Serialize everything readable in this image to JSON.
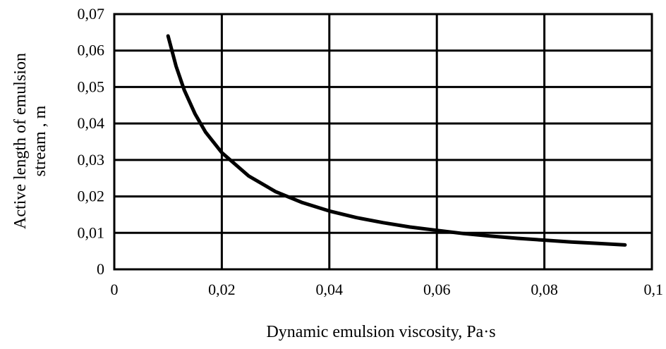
{
  "chart_data": {
    "type": "line",
    "title": "",
    "xlabel": "Dynamic emulsion viscosity, Pa·s",
    "ylabel_lines": [
      "Active length of emulsion",
      "stream , m"
    ],
    "xlim": [
      0,
      0.1
    ],
    "ylim": [
      0,
      0.07
    ],
    "x_ticks": [
      0,
      0.02,
      0.04,
      0.06,
      0.08,
      0.1
    ],
    "y_ticks": [
      0,
      0.01,
      0.02,
      0.03,
      0.04,
      0.05,
      0.06,
      0.07
    ],
    "x_tick_labels": [
      "0",
      "0,02",
      "0,04",
      "0,06",
      "0,08",
      "0,1"
    ],
    "y_tick_labels": [
      "0",
      "0,01",
      "0,02",
      "0,03",
      "0,04",
      "0,05",
      "0,06",
      "0,07"
    ],
    "grid": true,
    "legend": "none",
    "series": [
      {
        "x": [
          0.01,
          0.0115,
          0.013,
          0.015,
          0.017,
          0.02,
          0.025,
          0.03,
          0.035,
          0.04,
          0.045,
          0.05,
          0.055,
          0.06,
          0.065,
          0.07,
          0.075,
          0.08,
          0.085,
          0.09,
          0.095
        ],
        "values": [
          0.064,
          0.0557,
          0.0492,
          0.0427,
          0.0376,
          0.032,
          0.0256,
          0.0213,
          0.0183,
          0.016,
          0.0142,
          0.0128,
          0.0116,
          0.0107,
          0.0098,
          0.0091,
          0.0085,
          0.008,
          0.0075,
          0.0071,
          0.0067
        ]
      }
    ]
  }
}
